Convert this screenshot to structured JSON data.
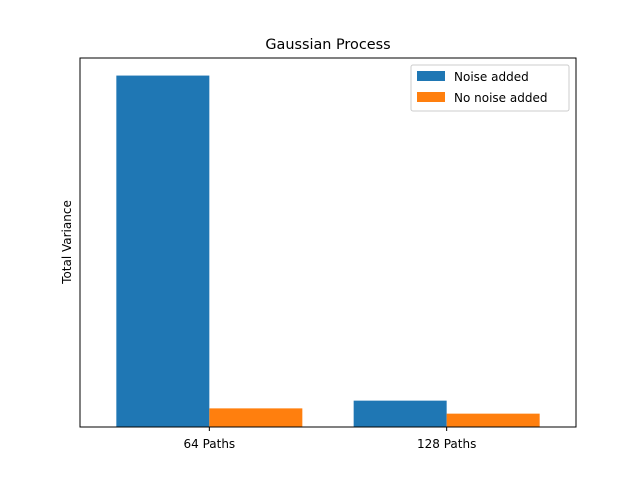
{
  "chart_data": {
    "type": "bar",
    "title": "Gaussian Process",
    "xlabel": "",
    "ylabel": "Total Variance",
    "categories": [
      "64 Paths",
      "128 Paths"
    ],
    "series": [
      {
        "name": "Noise added",
        "color": "#1f77b4",
        "values": [
          1.0,
          0.075
        ]
      },
      {
        "name": "No noise added",
        "color": "#ff7f0e",
        "values": [
          0.053,
          0.038
        ]
      }
    ],
    "ylim": [
      0,
      1.05
    ],
    "y_ticks_shown": false,
    "grid": false,
    "legend_position": "top-right"
  }
}
